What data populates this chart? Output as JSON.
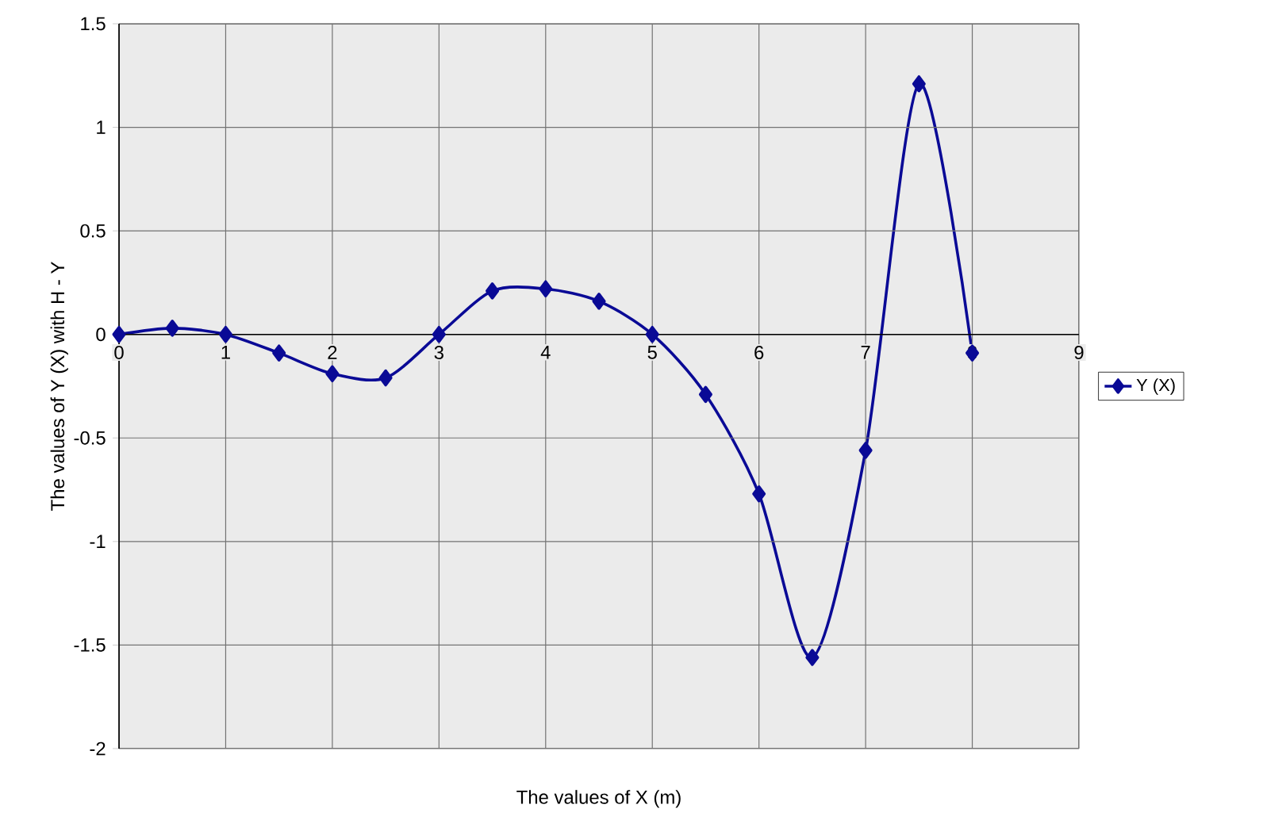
{
  "chart_data": {
    "type": "line",
    "xlabel": "The values of X (m)",
    "ylabel": "The values of Y (X) with H - Y",
    "x": [
      0,
      0.5,
      1,
      1.5,
      2,
      2.5,
      3,
      3.5,
      4,
      4.5,
      5,
      5.5,
      6,
      6.5,
      7,
      7.5,
      8
    ],
    "series": [
      {
        "name": "Y (X)",
        "color": "#0a0a96",
        "values": [
          0,
          0.03,
          0,
          -0.09,
          -0.19,
          -0.21,
          0,
          0.21,
          0.22,
          0.16,
          0,
          -0.29,
          -0.77,
          -1.56,
          -0.56,
          1.21,
          -0.09
        ]
      }
    ],
    "xlim": [
      0,
      9
    ],
    "ylim": [
      -2,
      1.5
    ],
    "xticks": [
      0,
      1,
      2,
      3,
      4,
      5,
      6,
      7,
      8,
      9
    ],
    "yticks": [
      -2,
      -1.5,
      -1,
      -0.5,
      0,
      0.5,
      1,
      1.5
    ],
    "grid": true,
    "legend": "right",
    "marker": "diamond",
    "line_style": "solid"
  }
}
